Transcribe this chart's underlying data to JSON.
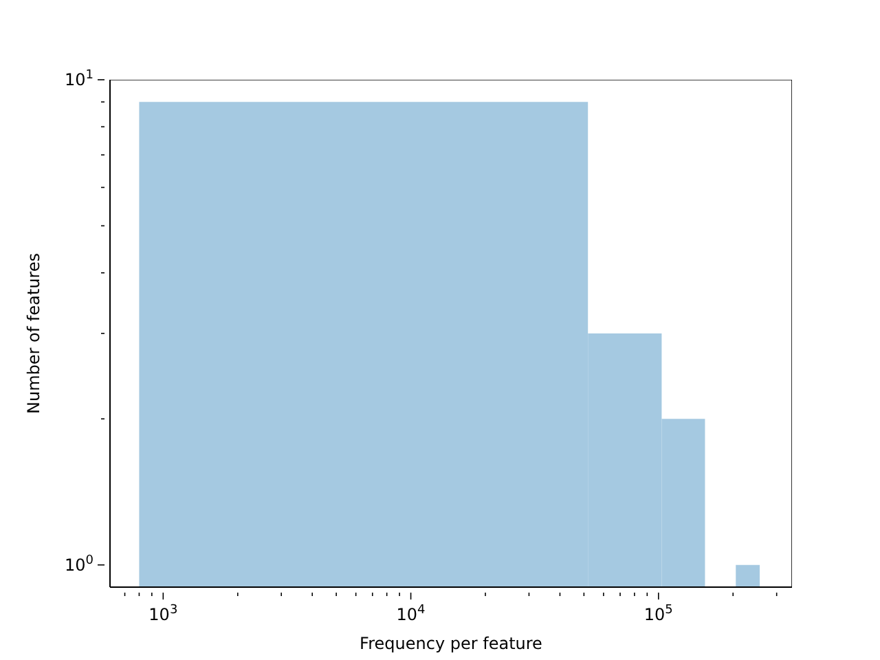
{
  "chart_data": {
    "type": "histogram",
    "xlabel": "Frequency per feature",
    "ylabel": "Number of features",
    "bins": [
      800,
      51900,
      103000,
      154100,
      205200,
      256300
    ],
    "values": [
      9,
      3,
      2,
      null,
      1
    ],
    "color": "#a5c9e1",
    "log": "xy",
    "xlim": [
      610,
      346000
    ],
    "ylim": [
      0.9,
      10
    ],
    "xticks": [
      {
        "value": 700,
        "label": null
      },
      {
        "value": 800,
        "label": null
      },
      {
        "value": 900,
        "label": null
      },
      {
        "value": 1000,
        "label": "10$^{3}$"
      },
      {
        "value": 2000,
        "label": null
      },
      {
        "value": 3000,
        "label": null
      },
      {
        "value": 4000,
        "label": null
      },
      {
        "value": 5000,
        "label": null
      },
      {
        "value": 6000,
        "label": null
      },
      {
        "value": 7000,
        "label": null
      },
      {
        "value": 8000,
        "label": null
      },
      {
        "value": 9000,
        "label": null
      },
      {
        "value": 10000,
        "label": "10$^{4}$"
      },
      {
        "value": 20000,
        "label": null
      },
      {
        "value": 30000,
        "label": null
      },
      {
        "value": 40000,
        "label": null
      },
      {
        "value": 50000,
        "label": null
      },
      {
        "value": 60000,
        "label": null
      },
      {
        "value": 70000,
        "label": null
      },
      {
        "value": 80000,
        "label": null
      },
      {
        "value": 90000,
        "label": null
      },
      {
        "value": 100000,
        "label": "10$^{5}$"
      },
      {
        "value": 200000,
        "label": null
      },
      {
        "value": 300000,
        "label": null
      }
    ],
    "yticks": [
      {
        "value": 1,
        "label": "10$^{0}$"
      },
      {
        "value": 2,
        "label": null
      },
      {
        "value": 3,
        "label": null
      },
      {
        "value": 4,
        "label": null
      },
      {
        "value": 5,
        "label": null
      },
      {
        "value": 6,
        "label": null
      },
      {
        "value": 7,
        "label": null
      },
      {
        "value": 8,
        "label": null
      },
      {
        "value": 9,
        "label": null
      },
      {
        "value": 10,
        "label": "10$^{1}$"
      }
    ],
    "grid": false
  }
}
